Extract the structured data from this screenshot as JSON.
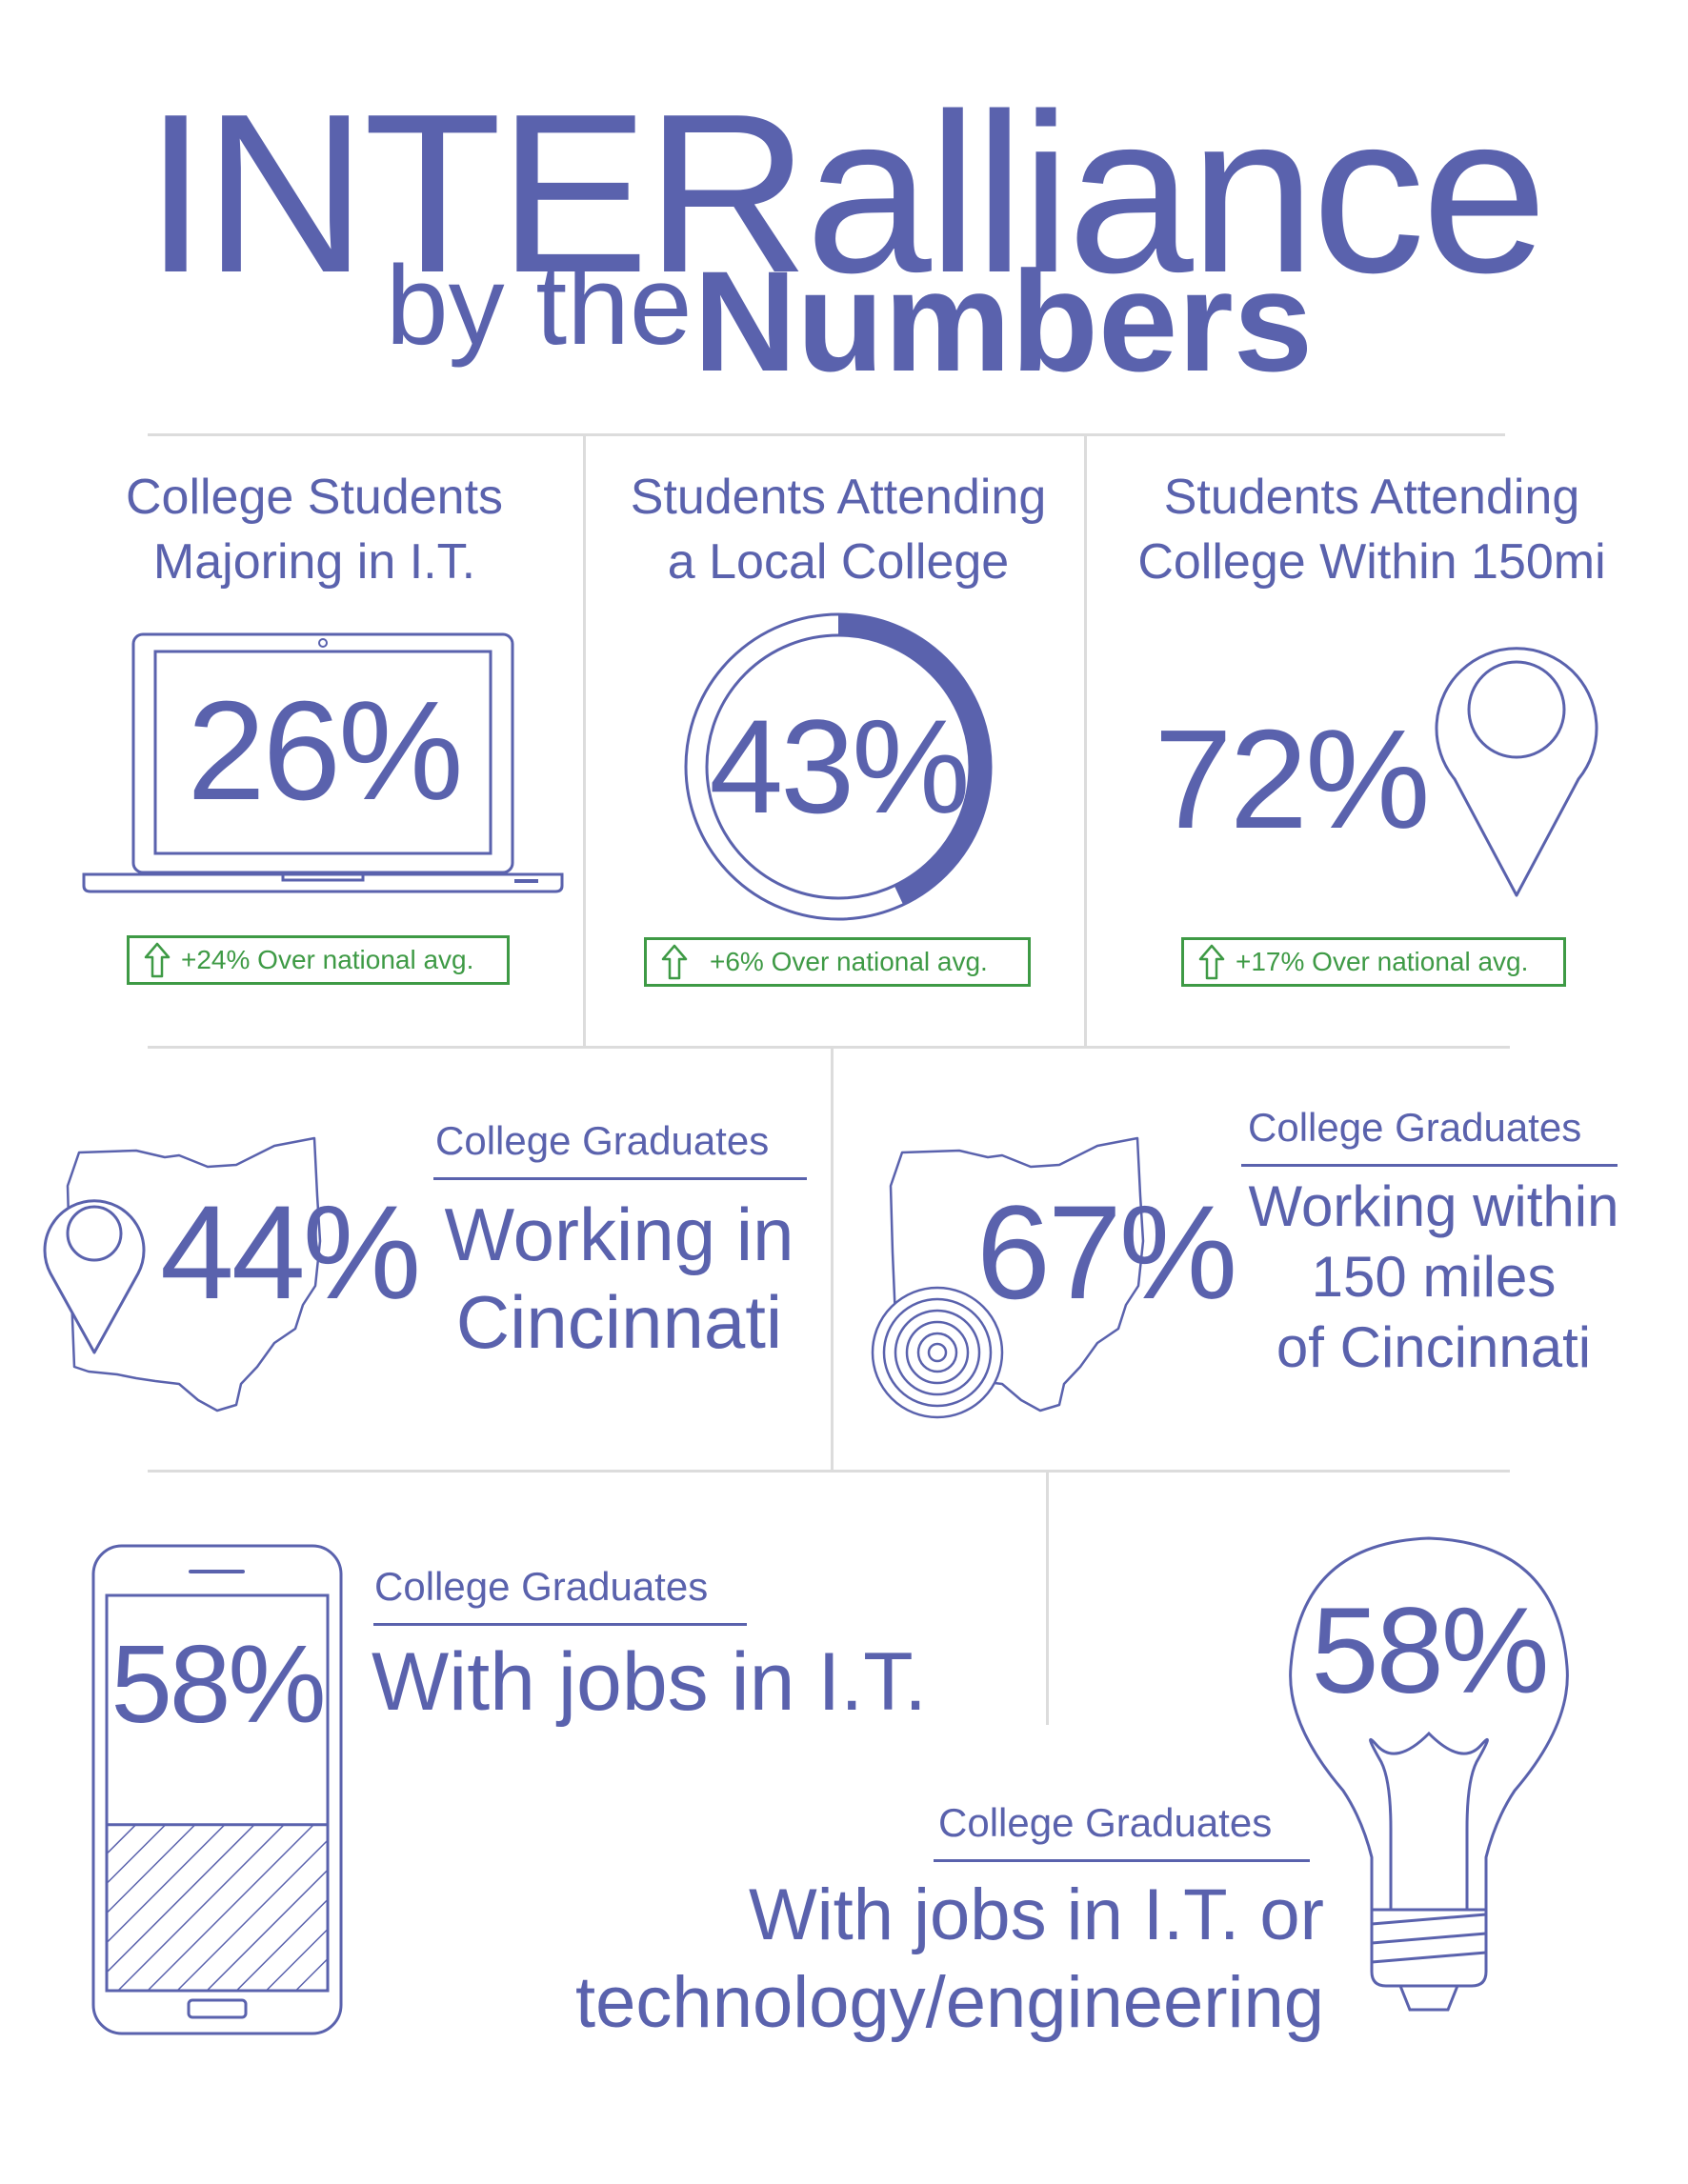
{
  "header": {
    "title": "INTERalliance",
    "by": "by the",
    "numbers": "Numbers"
  },
  "stats_top": [
    {
      "label_line1": "College Students",
      "label_line2": "Majoring in I.T.",
      "value": "26%",
      "badge": "+24% Over national avg.",
      "icon": "laptop-icon"
    },
    {
      "label_line1": "Students Attending",
      "label_line2": "a Local College",
      "value": "43%",
      "ring_fraction": 0.43,
      "badge": "+6% Over national avg.",
      "icon": "progress-ring-icon"
    },
    {
      "label_line1": "Students Attending",
      "label_line2": "College Within 150mi",
      "value": "72%",
      "badge": "+17% Over national avg.",
      "icon": "map-pin-icon"
    }
  ],
  "stats_mid": [
    {
      "heading": "College Graduates",
      "value": "44%",
      "line1": "Working in",
      "line2": "Cincinnati",
      "icon": "ohio-map-pin-icon"
    },
    {
      "heading": "College Graduates",
      "value": "67%",
      "line1": "Working within",
      "line2": "150 miles",
      "line3": "of Cincinnati",
      "icon": "ohio-map-radius-icon"
    }
  ],
  "stats_bottom": [
    {
      "heading": "College Graduates",
      "value": "58%",
      "line1": "With jobs in I.T.",
      "fill_fraction": 0.58,
      "icon": "smartphone-icon"
    },
    {
      "heading": "College Graduates",
      "value": "58%",
      "line1": "With jobs in I.T. or",
      "line2": "technology/engineering",
      "icon": "lightbulb-icon"
    }
  ],
  "colors": {
    "primary": "#5a62ad",
    "positive": "#3e9a45",
    "divider": "#dcdcdc"
  }
}
